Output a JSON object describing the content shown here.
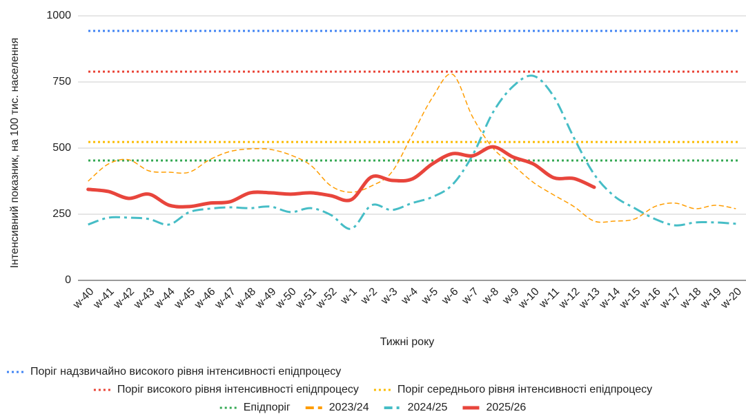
{
  "chart_data": {
    "type": "line",
    "x_label": "Тижні року",
    "y_label": "Інтенсивний показник, на 100 тис. населення",
    "categories": [
      "w-40",
      "w-41",
      "w-42",
      "w-43",
      "w-44",
      "w-45",
      "w-46",
      "w-47",
      "w-48",
      "w-49",
      "w-50",
      "w-51",
      "w-52",
      "w-1",
      "w-2",
      "w-3",
      "w-4",
      "w-5",
      "w-6",
      "w-7",
      "w-8",
      "w-9",
      "w-10",
      "w-11",
      "w-12",
      "w-13",
      "w-14",
      "w-15",
      "w-16",
      "w-17",
      "w-18",
      "w-19",
      "w-20"
    ],
    "ylim": [
      0,
      1000
    ],
    "yticks": [
      0,
      250,
      500,
      750,
      1000
    ],
    "grid": true,
    "thresholds": [
      {
        "name": "Поріг надзвичайно високого рівня інтенсивності епідпроцесу",
        "color": "#4285f4",
        "value": 943
      },
      {
        "name": "Поріг високого рівня інтенсивності епідпроцесу",
        "color": "#ea4335",
        "value": 789
      },
      {
        "name": "Поріг середнього рівня інтенсивності епідпроцесу",
        "color": "#fbbc04",
        "value": 523
      },
      {
        "name": "Епідпоріг",
        "color": "#34a853",
        "value": 453
      }
    ],
    "series": [
      {
        "name": "2023/24",
        "color": "#ff9d00",
        "line_style": "dashed",
        "values": [
          375,
          440,
          456,
          414,
          409,
          409,
          456,
          487,
          497,
          495,
          474,
          435,
          357,
          333,
          357,
          409,
          549,
          690,
          779,
          617,
          500,
          435,
          370,
          323,
          279,
          224,
          224,
          232,
          279,
          292,
          271,
          284,
          271
        ]
      },
      {
        "name": "2024/25",
        "color": "#46bdc6",
        "line_style": "dash-dot",
        "values": [
          211,
          237,
          237,
          232,
          211,
          258,
          271,
          276,
          273,
          279,
          258,
          273,
          247,
          195,
          284,
          266,
          292,
          315,
          362,
          474,
          635,
          734,
          773,
          695,
          539,
          401,
          318,
          273,
          232,
          208,
          219,
          219,
          214
        ]
      },
      {
        "name": "2025/26",
        "color": "#e8453c",
        "line_style": "solid",
        "values": [
          344,
          336,
          310,
          326,
          284,
          279,
          292,
          297,
          331,
          331,
          326,
          331,
          320,
          305,
          391,
          378,
          383,
          440,
          479,
          471,
          505,
          466,
          440,
          388,
          385,
          352,
          null,
          null,
          null,
          null,
          null,
          null,
          null
        ]
      }
    ]
  }
}
